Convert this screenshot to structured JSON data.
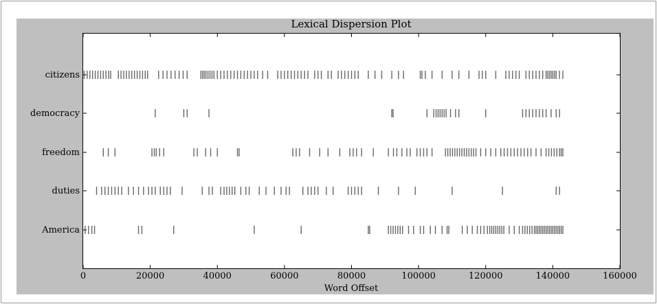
{
  "chart_data": {
    "type": "scatter",
    "title": "Lexical Dispersion Plot",
    "xlabel": "Word Offset",
    "ylabel": "",
    "xlim": [
      0,
      160000
    ],
    "xticks": [
      0,
      20000,
      40000,
      60000,
      80000,
      100000,
      120000,
      140000,
      160000
    ],
    "xtick_labels": [
      "0",
      "20000",
      "40000",
      "60000",
      "80000",
      "100000",
      "120000",
      "140000",
      "160000"
    ],
    "grid": false,
    "marker": "|",
    "marker_color": "#333333",
    "background_color": "#bfbfbf",
    "categories": [
      "citizens",
      "democracy",
      "freedom",
      "duties",
      "America"
    ],
    "series": [
      {
        "name": "citizens",
        "x": [
          300,
          1200,
          2000,
          2800,
          3600,
          4400,
          5200,
          6000,
          6800,
          7600,
          8200,
          10500,
          11300,
          12100,
          12900,
          13700,
          14500,
          15300,
          16100,
          16900,
          17700,
          18500,
          19200,
          22500,
          23800,
          25000,
          26200,
          27400,
          28600,
          29800,
          31000,
          35100,
          35600,
          36100,
          36600,
          37200,
          37800,
          38400,
          39000,
          40000,
          41000,
          42000,
          43000,
          44000,
          45000,
          46000,
          47000,
          48000,
          49000,
          50000,
          51000,
          52000,
          53500,
          55000,
          58000,
          59000,
          60000,
          61000,
          62000,
          63000,
          64000,
          65000,
          66000,
          67000,
          69000,
          70000,
          71000,
          73000,
          74000,
          76000,
          77000,
          78000,
          79000,
          80000,
          81000,
          82000,
          85000,
          87000,
          89000,
          92000,
          94000,
          95500,
          100500,
          101000,
          102000,
          104000,
          107000,
          110000,
          112000,
          115000,
          118000,
          119000,
          120000,
          123000,
          126000,
          127000,
          128000,
          129000,
          130000,
          132000,
          133000,
          134000,
          135000,
          136000,
          137000,
          138000,
          138500,
          139000,
          139500,
          140000,
          140500,
          141000,
          142000,
          143000
        ]
      },
      {
        "name": "democracy",
        "x": [
          21500,
          30000,
          31000,
          37500,
          92000,
          92400,
          102500,
          104500,
          105200,
          105800,
          106400,
          107000,
          107600,
          108200,
          109500,
          111000,
          112000,
          120000,
          131000,
          132000,
          133000,
          134000,
          135000,
          136000,
          137000,
          138000,
          139500,
          141000,
          142000
        ]
      },
      {
        "name": "freedom",
        "x": [
          6000,
          7500,
          9500,
          20500,
          21200,
          21800,
          22800,
          24000,
          33000,
          34000,
          36500,
          38000,
          40000,
          46000,
          46500,
          62500,
          63500,
          64500,
          67500,
          70500,
          73000,
          76500,
          79500,
          80500,
          81500,
          83000,
          86500,
          91000,
          92500,
          93500,
          95000,
          96500,
          97500,
          99500,
          100500,
          101500,
          102500,
          104000,
          108000,
          108700,
          109400,
          110100,
          110800,
          111500,
          112200,
          112900,
          113600,
          114300,
          115000,
          115700,
          116400,
          117100,
          118500,
          120000,
          121500,
          123000,
          124500,
          125500,
          126500,
          127500,
          128500,
          129500,
          130500,
          131500,
          132500,
          133500,
          135000,
          136500,
          138000,
          138800,
          139600,
          140400,
          141200,
          142000,
          142500,
          143000
        ]
      },
      {
        "name": "duties",
        "x": [
          4000,
          5500,
          6500,
          7500,
          8500,
          9500,
          10500,
          11500,
          13500,
          15000,
          16500,
          18000,
          19500,
          20500,
          21500,
          23000,
          24000,
          25000,
          26000,
          29500,
          35500,
          37500,
          38500,
          41000,
          42000,
          42800,
          43600,
          44400,
          45200,
          47000,
          48500,
          49500,
          52500,
          54500,
          57000,
          59000,
          60500,
          61500,
          65500,
          67000,
          68000,
          69000,
          70000,
          72500,
          74500,
          79000,
          80000,
          81000,
          82000,
          83000,
          88000,
          94000,
          99000,
          110000,
          125000,
          141000,
          142000
        ]
      },
      {
        "name": "America",
        "x": [
          600,
          1600,
          2600,
          3400,
          16500,
          17500,
          27000,
          51000,
          65000,
          85000,
          85400,
          91000,
          91700,
          92400,
          93100,
          93800,
          94500,
          95200,
          97000,
          98500,
          100500,
          101500,
          103500,
          105000,
          107000,
          108500,
          109000,
          113000,
          114500,
          116000,
          117500,
          118500,
          119500,
          120500,
          121200,
          121800,
          122400,
          123000,
          123600,
          124200,
          124800,
          125400,
          127000,
          128500,
          130000,
          131000,
          131700,
          132400,
          133100,
          133800,
          134500,
          135000,
          135500,
          136000,
          136500,
          137000,
          137500,
          138000,
          138500,
          139000,
          139500,
          140000,
          140500,
          141000,
          141500,
          142000,
          142500,
          143000
        ]
      }
    ]
  }
}
